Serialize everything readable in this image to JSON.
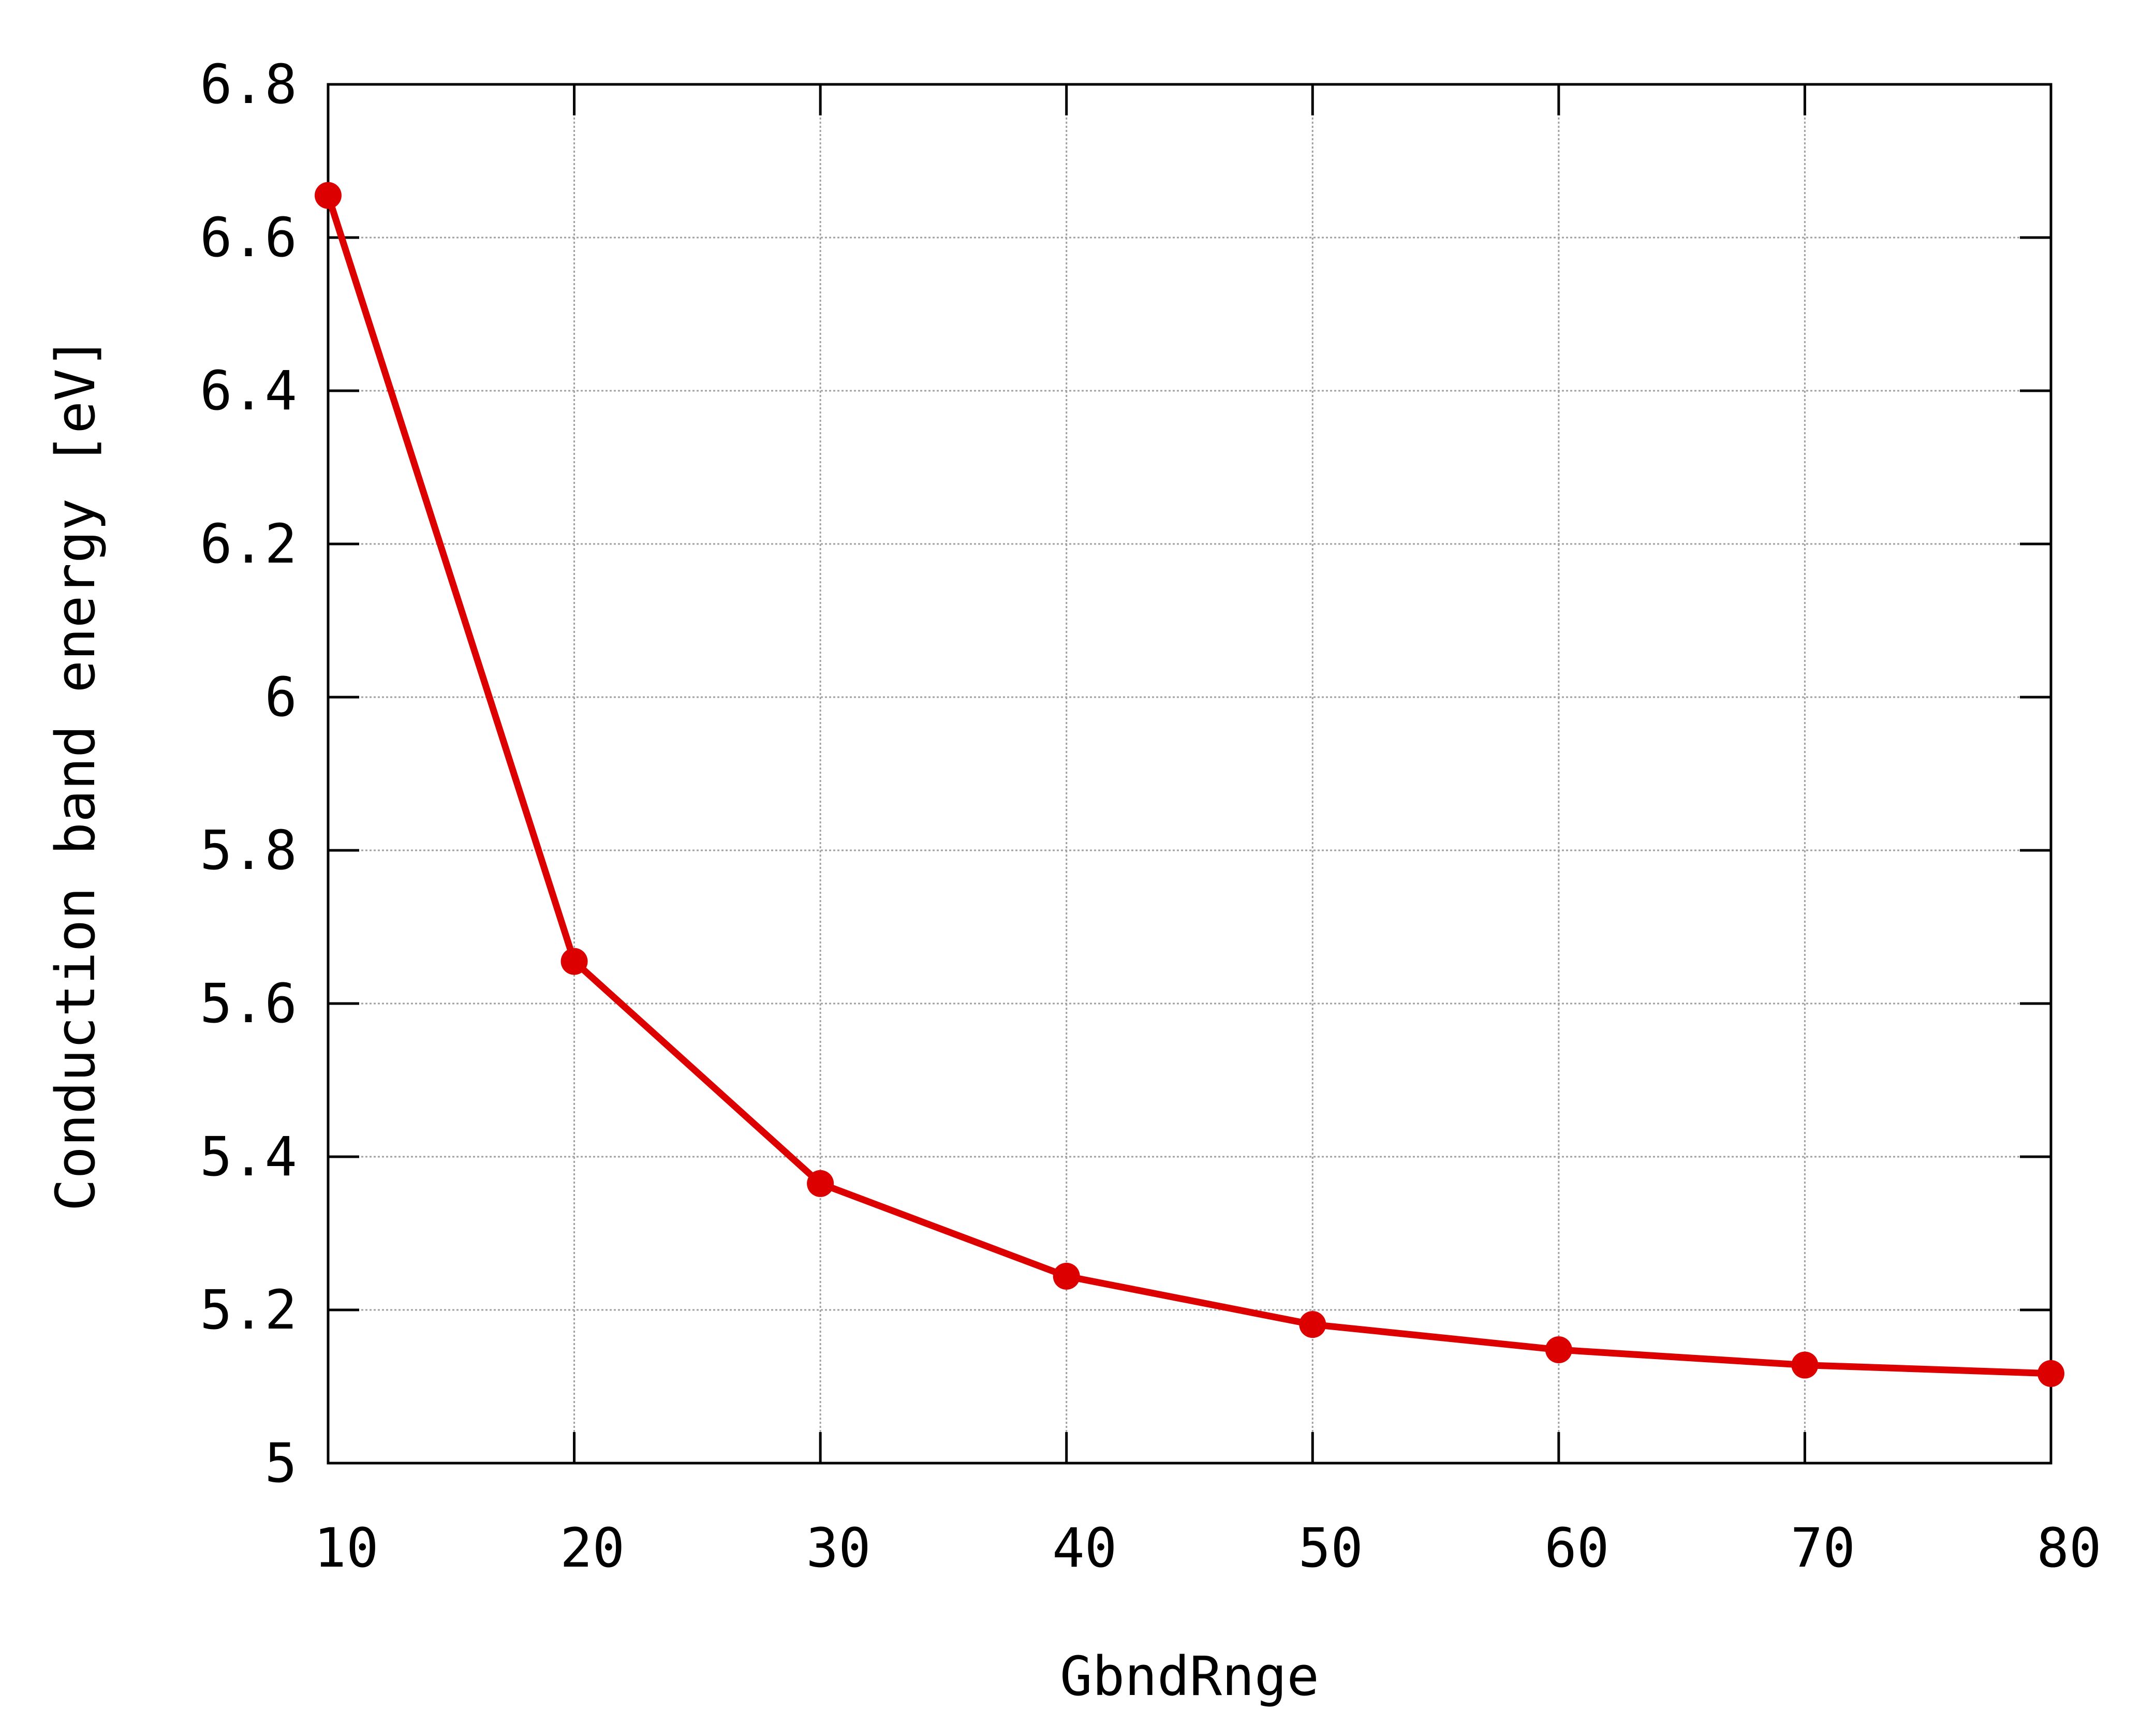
{
  "chart_data": {
    "type": "line",
    "title": "",
    "xlabel": "GbndRnge",
    "ylabel": "Conduction band energy [eV]",
    "xlim": [
      10,
      80
    ],
    "ylim": [
      5,
      6.8
    ],
    "grid": true,
    "xticks": [
      10,
      20,
      30,
      40,
      50,
      60,
      70,
      80
    ],
    "yticks": [
      5,
      5.2,
      5.4,
      5.6,
      5.8,
      6,
      6.2,
      6.4,
      6.6,
      6.8
    ],
    "xtick_labels": [
      "10",
      "20",
      "30",
      "40",
      "50",
      "60",
      "70",
      "80"
    ],
    "ytick_labels": [
      "5",
      "5.2",
      "5.4",
      "5.6",
      "5.8",
      "6",
      "6.2",
      "6.4",
      "6.6",
      "6.8"
    ],
    "series": [
      {
        "color": "#dd0000",
        "marker": "circle",
        "x": [
          10,
          20,
          30,
          40,
          50,
          60,
          70,
          80
        ],
        "y": [
          6.655,
          5.655,
          5.365,
          5.244,
          5.181,
          5.148,
          5.128,
          5.117
        ]
      }
    ]
  }
}
